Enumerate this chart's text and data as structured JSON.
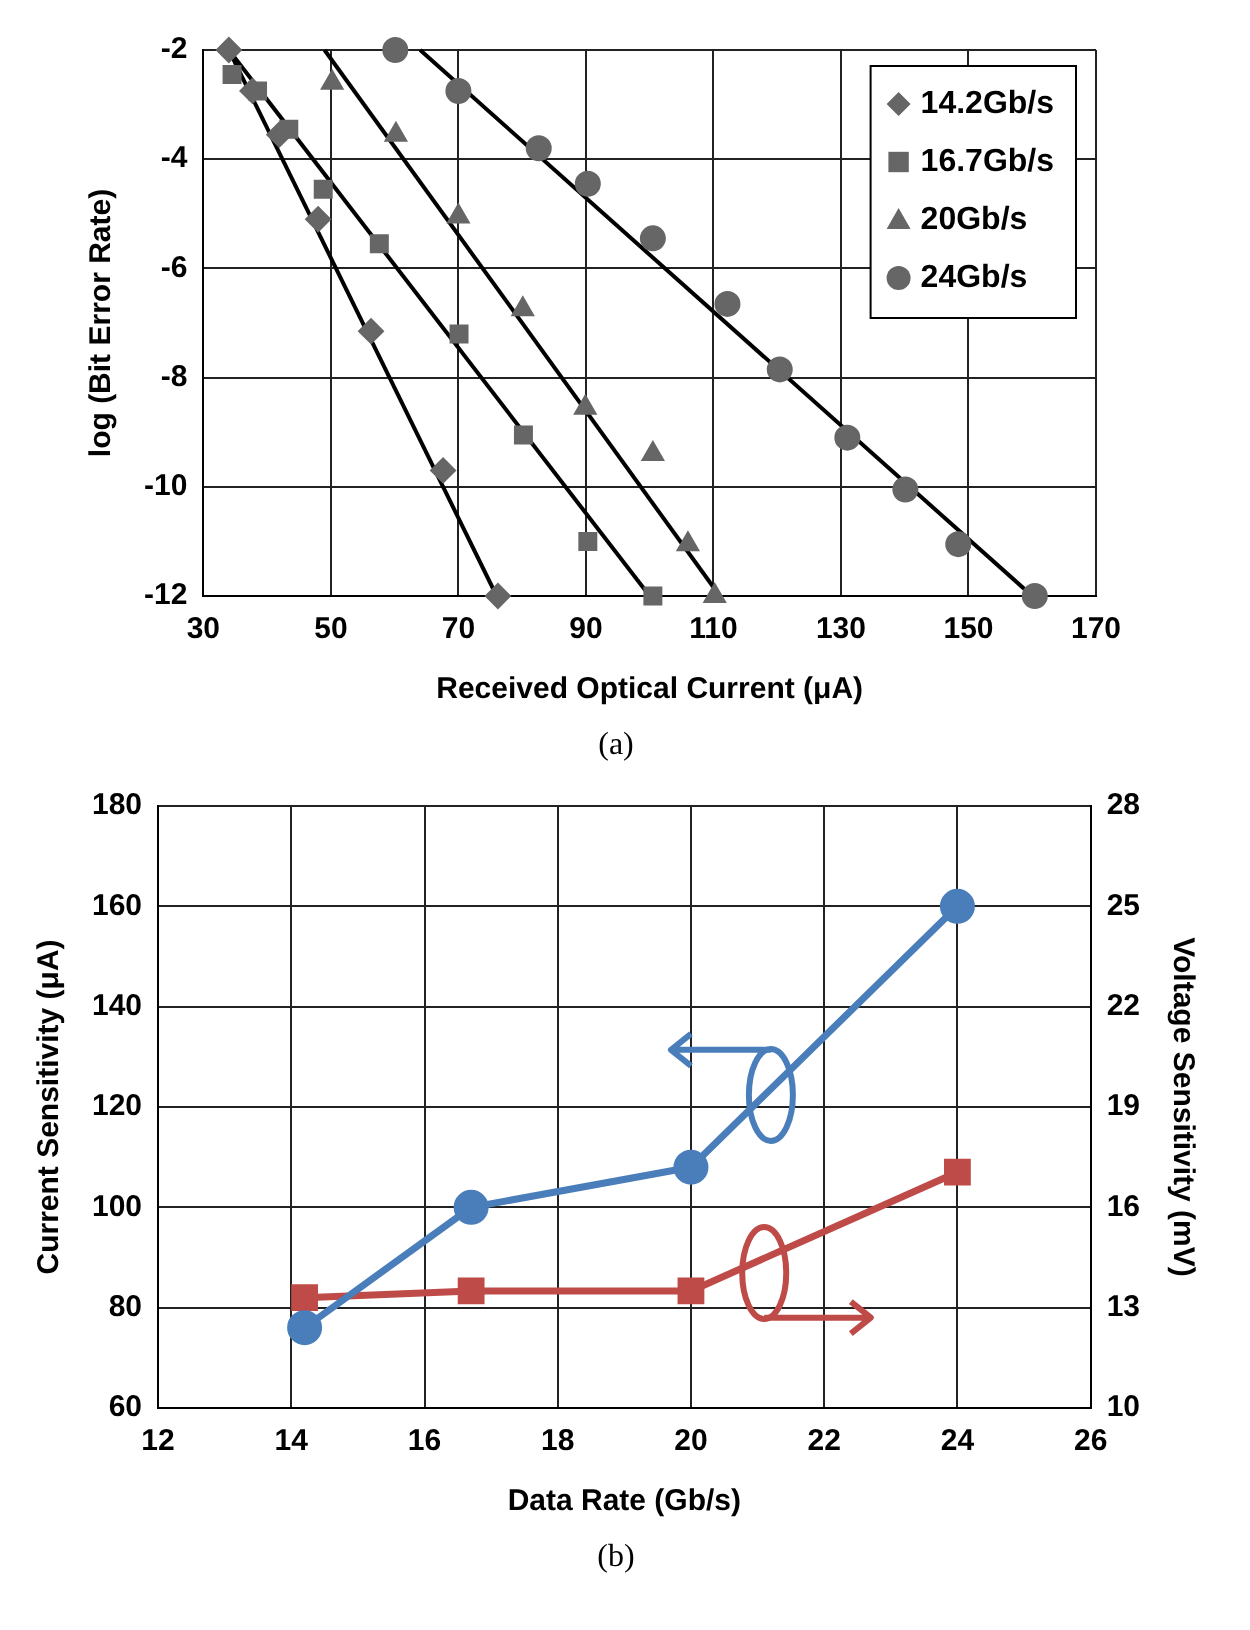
{
  "chart_data": [
    {
      "type": "scatter",
      "xlabel": "Received Optical Current (μA)",
      "ylabel": "log (Bit Error Rate)",
      "xlim": [
        30,
        170
      ],
      "xticks": [
        30,
        50,
        70,
        90,
        110,
        130,
        150,
        170
      ],
      "ylim": [
        -12,
        -2
      ],
      "yticks": [
        -2,
        -4,
        -6,
        -8,
        -10,
        -12
      ],
      "grid": true,
      "legend": "top right",
      "annotations": [
        "(a)"
      ],
      "series": [
        {
          "name": "14.2Gb/s",
          "color": "#666666",
          "marker": "diamond",
          "x": [
            34,
            37.7,
            41.9,
            48,
            56.3,
            67.6,
            76.2
          ],
          "values": [
            -2,
            -2.75,
            -3.55,
            -5.1,
            -7.15,
            -9.7,
            -12
          ]
        },
        {
          "name": "16.7Gb/s",
          "color": "#666666",
          "marker": "square",
          "x": [
            34.5,
            38.5,
            43.4,
            48.8,
            57.6,
            70.1,
            80.2,
            90.3,
            100.5
          ],
          "values": [
            -2.45,
            -2.75,
            -3.45,
            -4.55,
            -5.55,
            -7.2,
            -9.05,
            -11,
            -12
          ]
        },
        {
          "name": "20Gb/s",
          "color": "#666666",
          "marker": "triangle",
          "x": [
            50.2,
            60.2,
            70,
            80.1,
            89.9,
            100.5,
            106,
            110.2
          ],
          "values": [
            -2.6,
            -3.55,
            -5.05,
            -6.75,
            -8.55,
            -9.4,
            -11.05,
            -12
          ]
        },
        {
          "name": "24Gb/s",
          "color": "#666666",
          "marker": "circle",
          "x": [
            60.1,
            70,
            82.6,
            90.3,
            100.5,
            112.2,
            120.4,
            131,
            140.1,
            148.4,
            160.4
          ],
          "values": [
            -2,
            -2.75,
            -3.8,
            -4.45,
            -5.45,
            -6.65,
            -7.85,
            -9.1,
            -10.05,
            -11.05,
            -12
          ]
        },
        {
          "type": "line",
          "color": "#000000",
          "marker": "none",
          "x": [
            34,
            76
          ],
          "values": [
            -2,
            -12
          ]
        },
        {
          "type": "line",
          "color": "#000000",
          "marker": "none",
          "x": [
            34,
            100
          ],
          "values": [
            -2,
            -12
          ]
        },
        {
          "type": "line",
          "color": "#000000",
          "marker": "none",
          "x": [
            49,
            111
          ],
          "values": [
            -2,
            -12
          ]
        },
        {
          "type": "line",
          "color": "#000000",
          "marker": "none",
          "x": [
            64,
            160
          ],
          "values": [
            -2,
            -12
          ]
        }
      ]
    },
    {
      "type": "line",
      "xlabel": "Data Rate (Gb/s)",
      "ylabel": "Current Sensitivity (μA)",
      "y2label": "Voltage Sensitivity (mV)",
      "xlim": [
        12,
        26
      ],
      "xticks": [
        12,
        14,
        16,
        18,
        20,
        22,
        24,
        26
      ],
      "ylim": [
        60,
        180
      ],
      "yticks": [
        60,
        80,
        100,
        120,
        140,
        160,
        180
      ],
      "y2lim": [
        10,
        28
      ],
      "y2ticks": [
        10,
        13,
        16,
        19,
        22,
        25,
        28
      ],
      "grid": true,
      "annotations": [
        "(b)"
      ],
      "x": [
        14.2,
        16.7,
        20,
        24
      ],
      "series": [
        {
          "color": "#4a7ebb",
          "marker": "circle",
          "values": [
            76,
            100,
            108,
            160
          ]
        },
        {
          "color": "#be4b48",
          "marker": "square",
          "axis": "y2",
          "values": [
            13.3,
            13.5,
            13.5,
            17.05
          ]
        }
      ]
    }
  ]
}
